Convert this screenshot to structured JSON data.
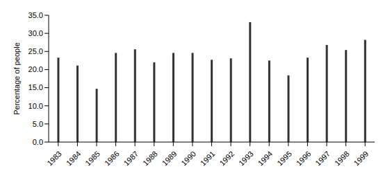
{
  "chart_data": {
    "type": "bar",
    "y_label": "Percentage of people",
    "categories": [
      "1983",
      "1984",
      "1985",
      "1986",
      "1987",
      "1988",
      "1989",
      "1990",
      "1991",
      "1992",
      "1993",
      "1994",
      "1995",
      "1996",
      "1997",
      "1998",
      "1999"
    ],
    "values": [
      23.3,
      21.1,
      14.7,
      24.6,
      25.6,
      22.0,
      24.6,
      24.6,
      22.7,
      23.1,
      33.1,
      22.5,
      18.4,
      23.3,
      26.8,
      25.4,
      28.2
    ],
    "color": "#333333",
    "ylim": [
      0,
      35
    ],
    "yticks": [
      {
        "value": 0,
        "label": "0.0"
      },
      {
        "value": 5,
        "label": "5.0"
      },
      {
        "value": 10,
        "label": "10.0"
      },
      {
        "value": 15,
        "label": "15.0"
      },
      {
        "value": 20,
        "label": "20.0"
      },
      {
        "value": 25,
        "label": "25.0"
      },
      {
        "value": 30,
        "label": "30.0"
      },
      {
        "value": 35,
        "label": "35.0"
      }
    ],
    "grid": false
  }
}
